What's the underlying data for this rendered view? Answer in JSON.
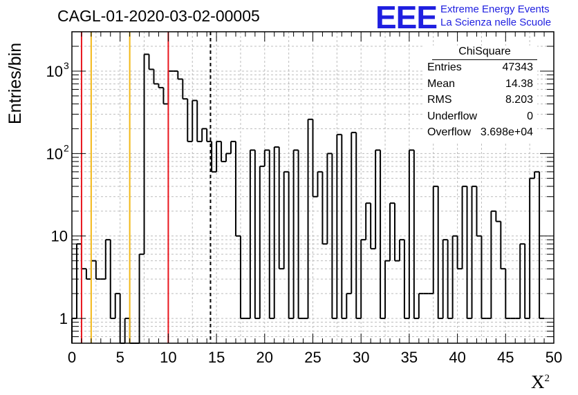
{
  "title": "CAGL-01-2020-03-02-00005",
  "logo": {
    "mark": "EEE",
    "line1": "Extreme Energy Events",
    "line2": "La Scienza nelle Scuole",
    "color": "#1f1fe0"
  },
  "stats_box": {
    "title": "ChiSquare",
    "rows": [
      {
        "key": "Entries",
        "value": "47343"
      },
      {
        "key": "Mean",
        "value": "14.38"
      },
      {
        "key": "RMS",
        "value": "8.203"
      },
      {
        "key": "Underflow",
        "value": "0"
      },
      {
        "key": "Overflow",
        "value": "3.698e+04"
      }
    ]
  },
  "chart_data": {
    "type": "histogram",
    "ylabel": "Entries/bin",
    "xlabel": "X",
    "xlabel_superscript": "2",
    "xlim": [
      0,
      50
    ],
    "ylim": [
      0.5,
      3000
    ],
    "y_scale": "log",
    "grid": true,
    "bin_width": 0.5,
    "x_ticks": [
      "0",
      "5",
      "10",
      "15",
      "20",
      "25",
      "30",
      "35",
      "40",
      "45",
      "50"
    ],
    "y_ticks": [
      {
        "value": 1,
        "label": "1"
      },
      {
        "value": 10,
        "label": "10"
      },
      {
        "value": 100,
        "label": "10",
        "sup": "2"
      },
      {
        "value": 1000,
        "label": "10",
        "sup": "3"
      }
    ],
    "values": [
      1,
      8,
      4,
      3,
      5,
      3,
      3,
      9,
      1,
      2,
      0,
      1,
      0,
      0,
      6,
      1600,
      1050,
      700,
      630,
      400,
      1000,
      1000,
      800,
      460,
      140,
      440,
      140,
      200,
      140,
      60,
      140,
      80,
      100,
      140,
      10,
      1,
      1,
      110,
      1,
      70,
      110,
      1,
      120,
      4,
      60,
      1,
      110,
      1,
      1,
      260,
      30,
      60,
      8,
      100,
      1,
      170,
      1,
      2,
      180,
      1,
      9,
      25,
      7,
      110,
      1,
      5,
      25,
      5,
      9,
      1,
      110,
      1,
      2,
      2,
      2,
      40,
      1,
      9,
      1,
      10,
      4,
      40,
      1,
      40,
      10,
      1,
      1,
      20,
      15,
      4,
      1,
      1,
      1,
      8,
      1,
      50,
      60,
      1
    ],
    "reference_lines": [
      {
        "x": 1,
        "color": "#e8141c",
        "style": "solid"
      },
      {
        "x": 2,
        "color": "#f2b817",
        "style": "solid"
      },
      {
        "x": 6,
        "color": "#f2b817",
        "style": "solid"
      },
      {
        "x": 10,
        "color": "#e8141c",
        "style": "solid"
      },
      {
        "x": 14.38,
        "color": "#000000",
        "style": "dashed"
      }
    ]
  }
}
